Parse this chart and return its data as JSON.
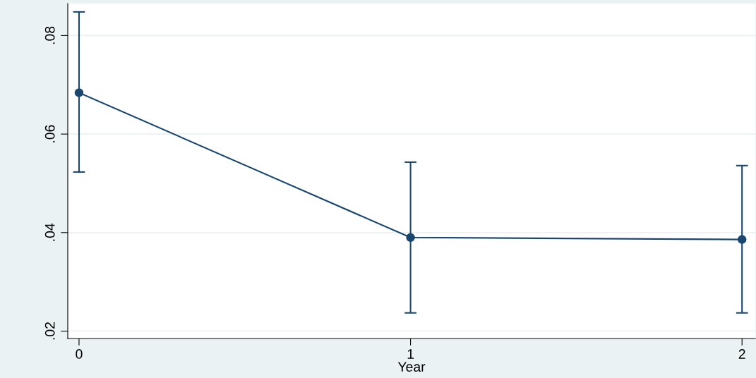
{
  "chart_data": {
    "type": "line",
    "xlabel": "Year",
    "x": [
      0,
      1,
      2
    ],
    "series": [
      {
        "color": "#1a476f",
        "values": [
          0.0684,
          0.039,
          0.0386
        ],
        "errors": [
          [
            0.0523,
            0.0848
          ],
          [
            0.0237,
            0.0543
          ],
          [
            0.0237,
            0.0536
          ]
        ]
      }
    ],
    "marker": "circle",
    "line_style": "solid",
    "grid": "y",
    "xlim": [
      -0.034,
      2.04
    ],
    "xticks": [
      0,
      1,
      2
    ],
    "ylim": [
      0.0185,
      0.0865
    ],
    "yticks": [
      {
        "value": 0.02,
        "label": ".02"
      },
      {
        "value": 0.04,
        "label": ".04"
      },
      {
        "value": 0.06,
        "label": ".06"
      },
      {
        "value": 0.08,
        "label": ".08"
      }
    ]
  }
}
